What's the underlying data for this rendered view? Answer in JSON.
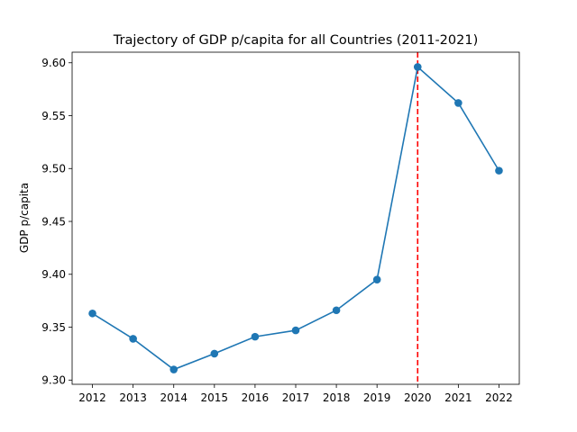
{
  "chart_data": {
    "type": "line",
    "title": "Trajectory of GDP p/capita for all Countries (2011-2021)",
    "xlabel": "",
    "ylabel": "GDP p/capita",
    "x": [
      2012,
      2013,
      2014,
      2015,
      2016,
      2017,
      2018,
      2019,
      2020,
      2021,
      2022
    ],
    "series": [
      {
        "values": [
          9.363,
          9.339,
          9.31,
          9.325,
          9.341,
          9.347,
          9.366,
          9.395,
          9.596,
          9.562,
          9.498
        ],
        "color": "#1f77b4",
        "marker": "circle"
      }
    ],
    "xticks": [
      "2012",
      "2013",
      "2014",
      "2015",
      "2016",
      "2017",
      "2018",
      "2019",
      "2020",
      "2021",
      "2022"
    ],
    "yticks": [
      "9.30",
      "9.35",
      "9.40",
      "9.45",
      "9.50",
      "9.55",
      "9.60"
    ],
    "ylim": [
      9.296,
      9.61
    ],
    "xlim": [
      2011.5,
      2022.5
    ],
    "vline": {
      "x": 2020,
      "color": "#ff0000",
      "style": "dashed"
    },
    "grid": false,
    "legend": "none"
  }
}
